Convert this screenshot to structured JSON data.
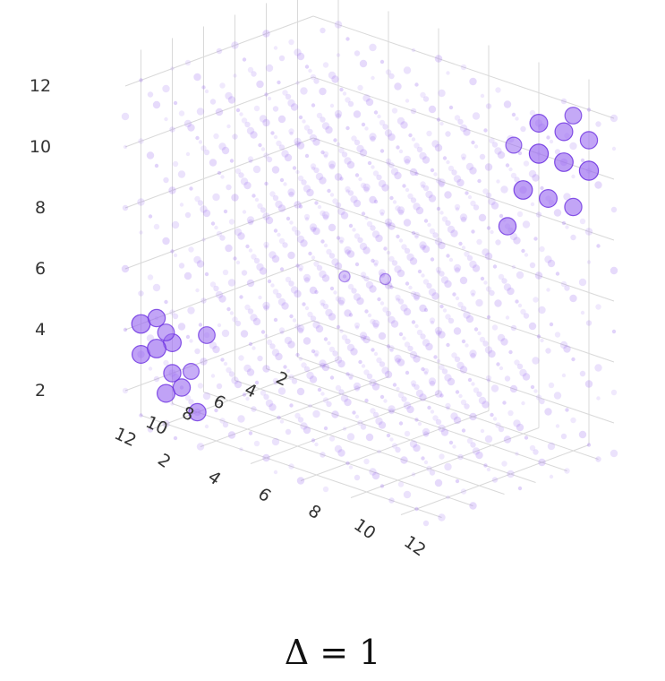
{
  "chart_data": {
    "type": "scatter",
    "title": "",
    "caption": "Δ = 1",
    "marker_color": "#9b6cf0",
    "marker_edge": "#6a2ee0",
    "grid": true,
    "axes": {
      "x": {
        "label": "",
        "ticks": [
          2,
          4,
          6,
          8,
          10,
          12
        ],
        "range": [
          1,
          13
        ]
      },
      "y": {
        "label": "",
        "ticks": [
          2,
          4,
          6,
          8,
          10,
          12
        ],
        "range": [
          1,
          13
        ]
      },
      "z": {
        "label": "",
        "ticks": [
          2,
          4,
          6,
          8,
          10,
          12
        ],
        "range": [
          1,
          13
        ]
      }
    },
    "series": [
      {
        "points_note": "Grid of points at integer coordinates; highlighted (large) points listed with weight",
        "points": [
          {
            "x": 12,
            "y": 1,
            "z": 4,
            "w": 0.9
          },
          {
            "x": 11,
            "y": 1,
            "z": 4,
            "w": 0.8
          },
          {
            "x": 10,
            "y": 1,
            "z": 3,
            "w": 0.85
          },
          {
            "x": 12,
            "y": 1,
            "z": 3,
            "w": 0.85
          },
          {
            "x": 11,
            "y": 1,
            "z": 3,
            "w": 0.9
          },
          {
            "x": 10,
            "y": 1,
            "z": 2,
            "w": 0.8
          },
          {
            "x": 12,
            "y": 2,
            "z": 2,
            "w": 0.85
          },
          {
            "x": 11,
            "y": 2,
            "z": 2,
            "w": 0.8
          },
          {
            "x": 10,
            "y": 2,
            "z": 1,
            "w": 0.8
          },
          {
            "x": 12,
            "y": 2,
            "z": 4,
            "w": 0.75
          },
          {
            "x": 11,
            "y": 3,
            "z": 4,
            "w": 0.75
          },
          {
            "x": 12,
            "y": 3,
            "z": 3,
            "w": 0.7
          },
          {
            "x": 1,
            "y": 10,
            "z": 10,
            "w": 0.95
          },
          {
            "x": 1,
            "y": 11,
            "z": 10,
            "w": 0.9
          },
          {
            "x": 1,
            "y": 12,
            "z": 10,
            "w": 0.95
          },
          {
            "x": 1,
            "y": 10,
            "z": 11,
            "w": 0.85
          },
          {
            "x": 1,
            "y": 11,
            "z": 11,
            "w": 0.85
          },
          {
            "x": 1,
            "y": 12,
            "z": 11,
            "w": 0.8
          },
          {
            "x": 2,
            "y": 10,
            "z": 9,
            "w": 0.9
          },
          {
            "x": 2,
            "y": 11,
            "z": 9,
            "w": 0.85
          },
          {
            "x": 2,
            "y": 12,
            "z": 9,
            "w": 0.8
          },
          {
            "x": 3,
            "y": 10,
            "z": 8,
            "w": 0.8
          },
          {
            "x": 2,
            "y": 12,
            "z": 12,
            "w": 0.75
          },
          {
            "x": 1,
            "y": 9,
            "z": 10,
            "w": 0.7
          },
          {
            "x": 6,
            "y": 7,
            "z": 6,
            "w": 0.3
          },
          {
            "x": 7,
            "y": 6,
            "z": 6,
            "w": 0.3
          }
        ]
      }
    ]
  }
}
